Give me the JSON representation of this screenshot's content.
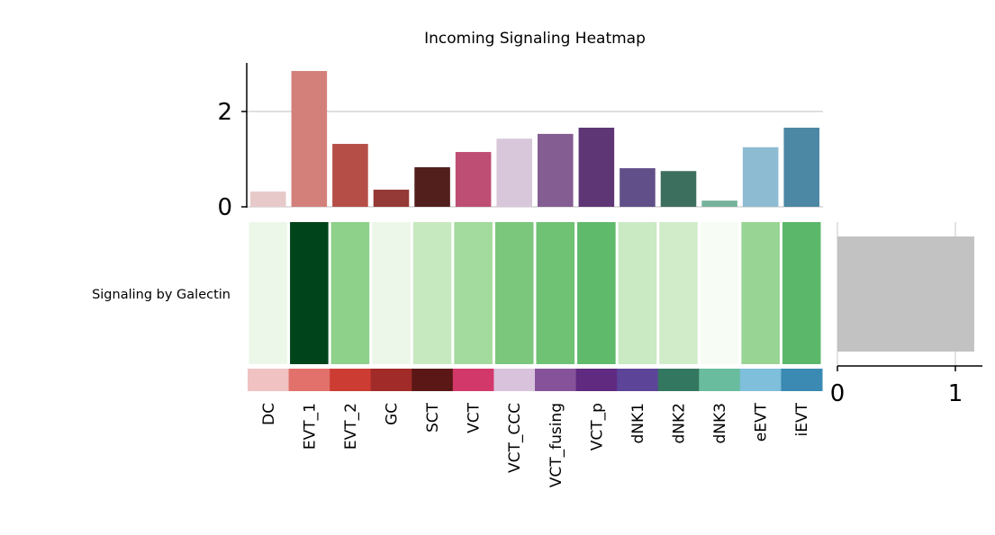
{
  "chart_data": {
    "type": "heatmap",
    "title": "Incoming Signaling Heatmap",
    "row_labels": [
      "Signaling by Galectin"
    ],
    "categories": [
      "DC",
      "EVT_1",
      "EVT_2",
      "GC",
      "SCT",
      "VCT",
      "VCT_CCC",
      "VCT_fusing",
      "VCT_p",
      "dNK1",
      "dNK2",
      "dNK3",
      "eEVT",
      "iEVT"
    ],
    "heatmap_values": [
      0.1,
      1.0,
      0.45,
      0.1,
      0.25,
      0.38,
      0.5,
      0.55,
      0.6,
      0.25,
      0.22,
      0.03,
      0.42,
      0.6
    ],
    "heatmap_colors": [
      "#edf7e9",
      "#00441b",
      "#8ed18a",
      "#edf7e9",
      "#c7e9c0",
      "#a3da9d",
      "#7bc77c",
      "#6fc173",
      "#60ba6c",
      "#c9eac2",
      "#d0ecc9",
      "#f7fcf5",
      "#98d594",
      "#5bb86a"
    ],
    "top_bar": {
      "values": [
        0.32,
        2.85,
        1.32,
        0.36,
        0.83,
        1.15,
        1.43,
        1.53,
        1.66,
        0.81,
        0.75,
        0.13,
        1.25,
        1.66
      ],
      "ylim": [
        0,
        3
      ],
      "yticks": [
        "0",
        "2"
      ],
      "ytick_values": [
        0,
        2
      ]
    },
    "bar_colors": [
      "#e8c9c9",
      "#d3807b",
      "#b54e47",
      "#953a36",
      "#521f1d",
      "#be4e73",
      "#d8c7da",
      "#845d93",
      "#5e3575",
      "#614f8a",
      "#3d6f5e",
      "#77b29c",
      "#8dbbd2",
      "#4c87a4"
    ],
    "group_colors": [
      "#f0c2c2",
      "#e2716b",
      "#cc3c32",
      "#a12b28",
      "#5a1716",
      "#d3386b",
      "#d9c2dc",
      "#86539b",
      "#5f2a80",
      "#5c4598",
      "#347760",
      "#6abc9e",
      "#7fbfdc",
      "#3a8ab3"
    ],
    "side_bar": {
      "values": [
        1.16
      ],
      "xlim": [
        0,
        1.2
      ],
      "xticks": [
        "0",
        "1"
      ],
      "xtick_values": [
        0,
        1
      ],
      "color": "#c2c2c2"
    }
  }
}
